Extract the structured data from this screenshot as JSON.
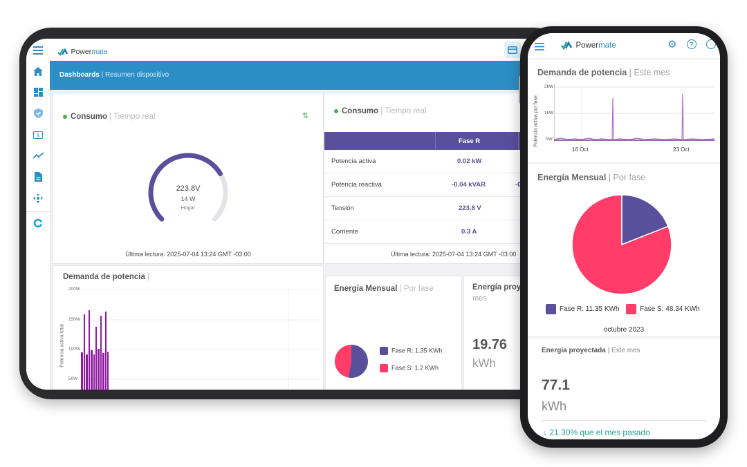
{
  "brand": {
    "name_part1": "Power",
    "name_part2": "mate"
  },
  "colors": {
    "primary": "#5a4f9b",
    "accent": "#ff3d68",
    "banner": "#2d8ec5",
    "teal": "#26a69a"
  },
  "tablet": {
    "breadcrumb": {
      "main": "Dashboards",
      "sub": "Resumen dispositivo"
    },
    "sidebar_icons": [
      "menu-icon",
      "home-icon",
      "dashboard-icon",
      "shield-icon",
      "billing-icon",
      "trend-icon",
      "document-icon",
      "move-icon",
      "circle-logo-icon"
    ],
    "consumo_card": {
      "title": "Consumo",
      "subtitle": "Tiempo real",
      "gauge": {
        "voltage": "223.8V",
        "power": "14 W",
        "name": "Hogar",
        "fraction": 0.72
      },
      "last_reading": "Última lectura: 2025-07-04 13:24 GMT -03:00"
    },
    "table_card": {
      "title": "Consumo",
      "subtitle": "Tiempo real",
      "header": "Fase R",
      "rows": [
        {
          "label": "Potencia activa",
          "value": "0.02 kW",
          "cut": ""
        },
        {
          "label": "Potencia reactiva",
          "value": "-0.04 kVAR",
          "cut": "-0"
        },
        {
          "label": "Tensión",
          "value": "223.8 V",
          "cut": ""
        },
        {
          "label": "Corriente",
          "value": "0.3 A",
          "cut": ""
        }
      ],
      "last_reading": "Última lectura: 2025-07-04 13:24 GMT -03:00"
    },
    "demand_card": {
      "title": "Demanda de potencia",
      "ylabel": "Potencia activa total",
      "yticks": [
        "200W",
        "150W",
        "100W",
        "50W"
      ]
    },
    "energy_card": {
      "title": "Energía Mensual",
      "subtitle": "Por fase",
      "legend": [
        {
          "label": "Fase R:",
          "value": "1.35 KWh"
        },
        {
          "label": "Fase S:",
          "value": "1.2 KWh"
        }
      ]
    },
    "projected_card": {
      "title": "Energía proy",
      "sub": "mes",
      "value": "19.76",
      "unit": "kWh"
    }
  },
  "phone": {
    "demand_card": {
      "title": "Demanda de potencia",
      "subtitle": "Este mes",
      "ylabel": "Potencia activa por fase",
      "yticks": [
        "2kW",
        "1kW",
        "0W"
      ],
      "xticks": [
        "16 Oct",
        "23 Oct"
      ]
    },
    "energy_card": {
      "title": "Energía Mensual",
      "subtitle": "Por fase",
      "legend": [
        {
          "label": "Fase R:",
          "value": "11.35 KWh"
        },
        {
          "label": "Fase S:",
          "value": "48.34 KWh"
        }
      ],
      "month": "octubre 2023"
    },
    "projected_card": {
      "title": "Energía proyectada",
      "subtitle": "Este mes",
      "value": "77.1",
      "unit": "kWh",
      "comparison": "21.30% que el mes pasado"
    }
  },
  "chart_data": [
    {
      "type": "pie",
      "title": "Energía Mensual",
      "categories": [
        "Fase R",
        "Fase S"
      ],
      "values": [
        1.35,
        1.2
      ],
      "unit": "KWh"
    },
    {
      "type": "pie",
      "title": "Energía Mensual",
      "categories": [
        "Fase R",
        "Fase S"
      ],
      "values": [
        11.35,
        48.34
      ],
      "unit": "KWh"
    }
  ]
}
